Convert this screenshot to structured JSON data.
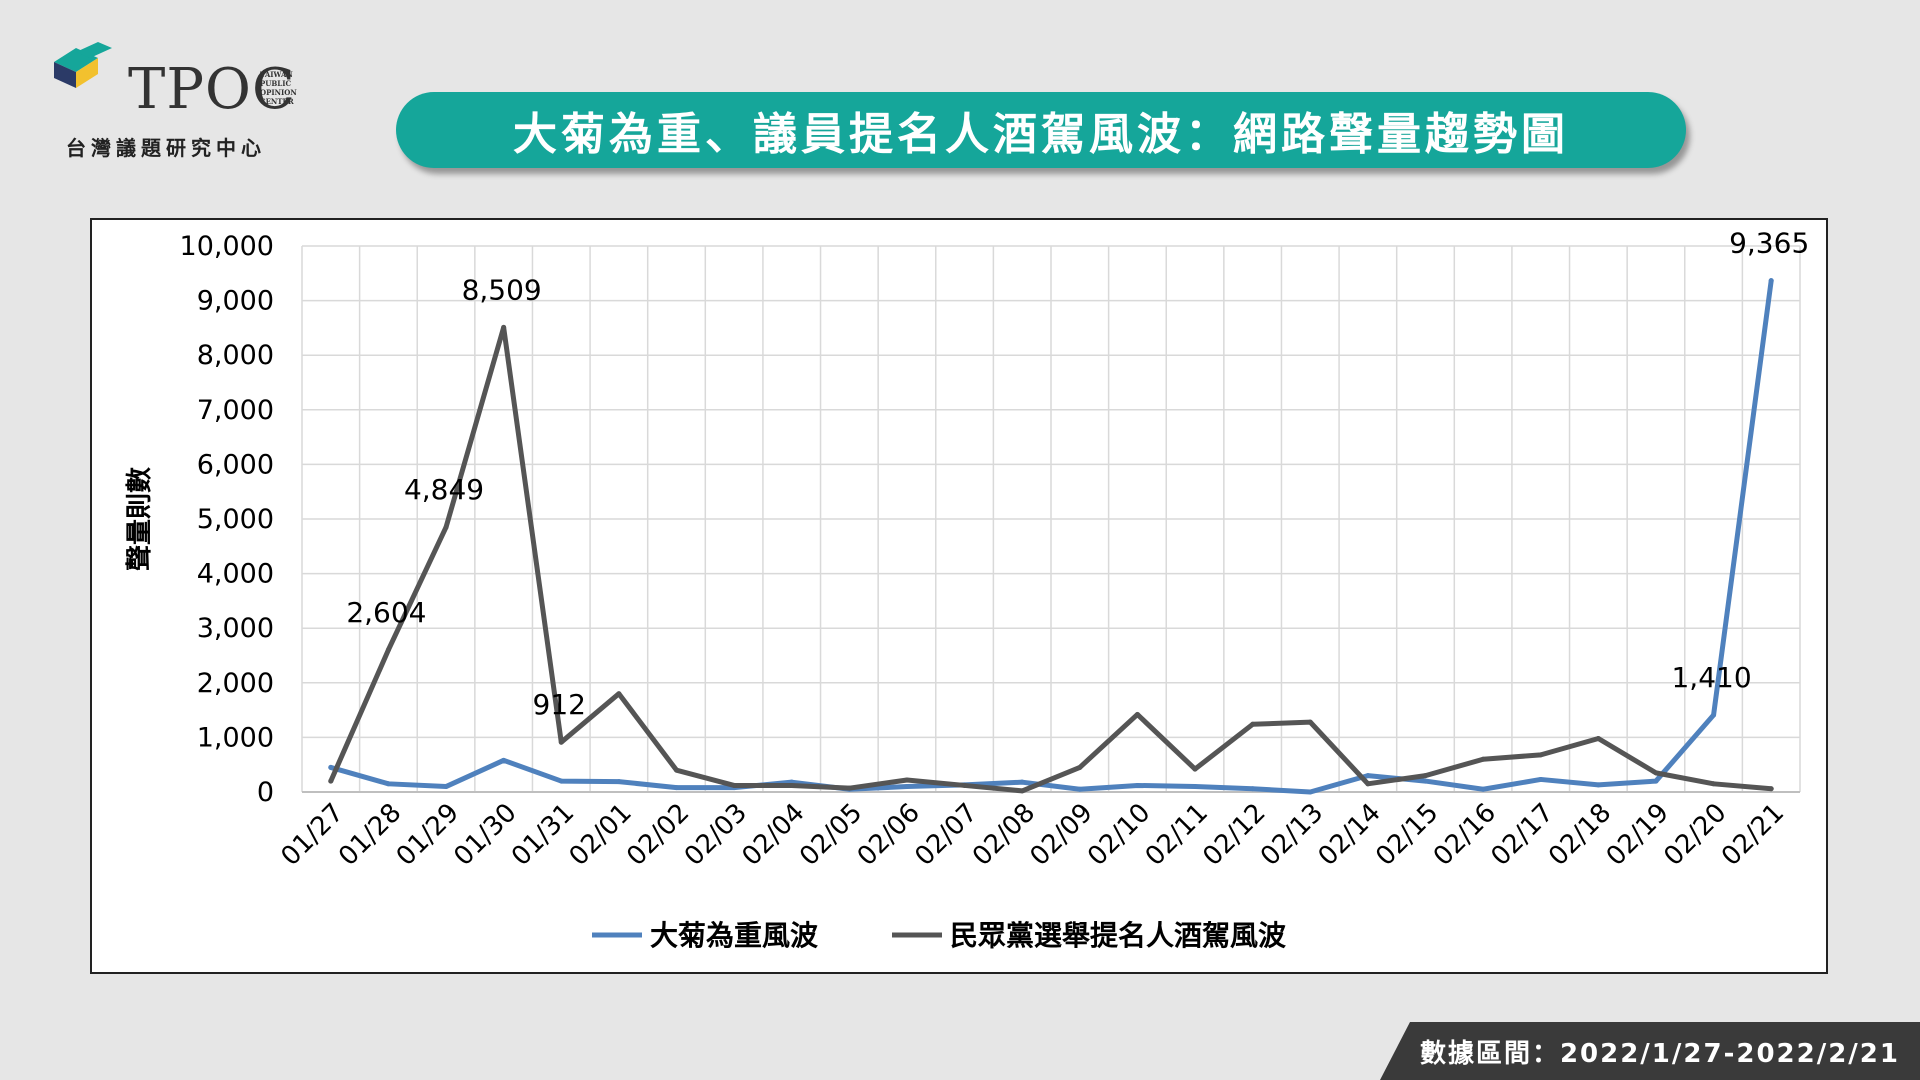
{
  "logo": {
    "name": "TPOC",
    "badge_lines": [
      "TAIWAN",
      "PUBLIC",
      "OPINION",
      "CENTER"
    ],
    "subtitle": "台灣議題研究中心"
  },
  "title": "大菊為重、議員提名人酒駕風波：網路聲量趨勢圖",
  "footer": "數據區間：2022/1/27-2022/2/21",
  "colors": {
    "title_bg": "#15a69a",
    "series_blue": "#4f81bd",
    "series_gray": "#555555",
    "logo_teal": "#15a69a",
    "logo_yellow": "#f2c12e",
    "logo_navy": "#2b3a67"
  },
  "chart_data": {
    "type": "line",
    "ylabel": "聲量則數",
    "ylim": [
      0,
      10000
    ],
    "yticks": [
      0,
      1000,
      2000,
      3000,
      4000,
      5000,
      6000,
      7000,
      8000,
      9000,
      10000
    ],
    "ytick_labels": [
      "0",
      "1,000",
      "2,000",
      "3,000",
      "4,000",
      "5,000",
      "6,000",
      "7,000",
      "8,000",
      "9,000",
      "10,000"
    ],
    "grid": true,
    "legend_position": "bottom",
    "categories": [
      "01/27",
      "01/28",
      "01/29",
      "01/30",
      "01/31",
      "02/01",
      "02/02",
      "02/03",
      "02/04",
      "02/05",
      "02/06",
      "02/07",
      "02/08",
      "02/09",
      "02/10",
      "02/11",
      "02/12",
      "02/13",
      "02/14",
      "02/15",
      "02/16",
      "02/17",
      "02/18",
      "02/19",
      "02/20",
      "02/21"
    ],
    "series": [
      {
        "name": "大菊為重風波",
        "color": "#4f81bd",
        "values": [
          450,
          150,
          100,
          580,
          200,
          190,
          80,
          80,
          180,
          50,
          100,
          130,
          180,
          50,
          120,
          100,
          60,
          0,
          300,
          200,
          50,
          230,
          130,
          200,
          1410,
          9365
        ]
      },
      {
        "name": "民眾黨選舉提名人酒駕風波",
        "color": "#555555",
        "values": [
          200,
          2604,
          4849,
          8509,
          912,
          1800,
          400,
          120,
          120,
          70,
          220,
          120,
          20,
          450,
          1420,
          420,
          1240,
          1280,
          150,
          300,
          600,
          680,
          980,
          350,
          150,
          60
        ]
      }
    ],
    "data_labels": [
      {
        "series": 1,
        "index": 1,
        "text": "2,604"
      },
      {
        "series": 1,
        "index": 2,
        "text": "4,849"
      },
      {
        "series": 1,
        "index": 3,
        "text": "8,509"
      },
      {
        "series": 1,
        "index": 4,
        "text": "912"
      },
      {
        "series": 0,
        "index": 24,
        "text": "1,410"
      },
      {
        "series": 0,
        "index": 25,
        "text": "9,365"
      }
    ]
  }
}
